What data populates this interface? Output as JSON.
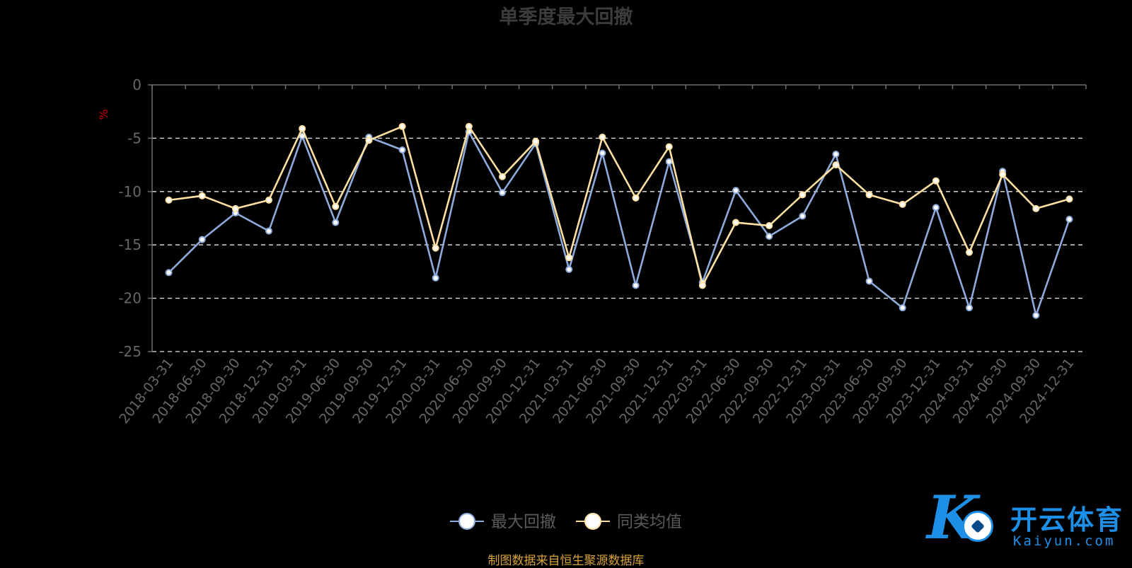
{
  "title": "单季度最大回撤",
  "source_note": "制图数据来自恒生聚源数据库",
  "logo": {
    "cn": "开云体育",
    "en": "Kaiyun.com"
  },
  "colors": {
    "series1": "#8eaadb",
    "series2": "#ffe0a3",
    "grid": "#e8e8e8",
    "axis": "#6e6e6e",
    "tick_text": "#666666",
    "unit": "#cc0000",
    "source": "#d8a23a"
  },
  "chart_data": {
    "type": "line",
    "title": "单季度最大回撤",
    "ylabel": "%",
    "ylim": [
      -25,
      0
    ],
    "yticks": [
      0,
      -5,
      -10,
      -15,
      -20,
      -25
    ],
    "grid": true,
    "legend_position": "bottom-center",
    "categories": [
      "2018-03-31",
      "2018-06-30",
      "2018-09-30",
      "2018-12-31",
      "2019-03-31",
      "2019-06-30",
      "2019-09-30",
      "2019-12-31",
      "2020-03-31",
      "2020-06-30",
      "2020-09-30",
      "2020-12-31",
      "2021-03-31",
      "2021-06-30",
      "2021-09-30",
      "2021-12-31",
      "2022-03-31",
      "2022-06-30",
      "2022-09-30",
      "2022-12-31",
      "2023-03-31",
      "2023-06-30",
      "2023-09-30",
      "2023-12-31",
      "2024-03-31",
      "2024-06-30",
      "2024-09-30",
      "2024-12-31"
    ],
    "series": [
      {
        "name": "最大回撤",
        "values": [
          -17.6,
          -14.5,
          -12.0,
          -13.7,
          -4.8,
          -12.9,
          -4.9,
          -6.1,
          -18.1,
          -4.4,
          -10.1,
          -5.5,
          -17.3,
          -6.4,
          -18.8,
          -7.2,
          -18.5,
          -9.9,
          -14.2,
          -12.3,
          -6.5,
          -18.4,
          -20.9,
          -11.5,
          -20.9,
          -8.1,
          -21.6,
          -12.6
        ]
      },
      {
        "name": "同类均值",
        "values": [
          -10.8,
          -10.4,
          -11.6,
          -10.8,
          -4.1,
          -11.4,
          -5.2,
          -3.9,
          -15.3,
          -3.9,
          -8.6,
          -5.3,
          -16.2,
          -4.9,
          -10.6,
          -5.8,
          -18.8,
          -12.9,
          -13.2,
          -10.3,
          -7.5,
          -10.3,
          -11.2,
          -9.0,
          -15.7,
          -8.4,
          -11.6,
          -10.7
        ]
      }
    ]
  }
}
